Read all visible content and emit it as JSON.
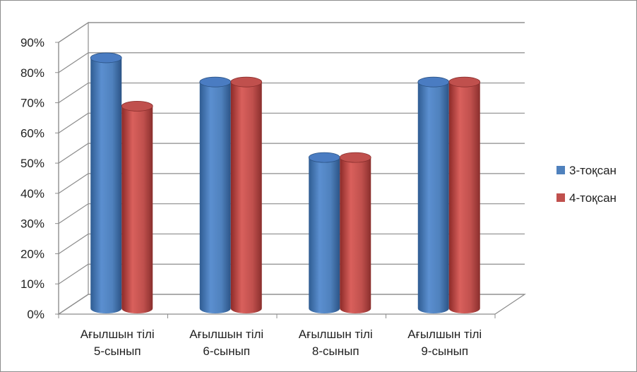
{
  "chart_data": {
    "type": "bar",
    "style": "3d-cylinder",
    "categories": [
      [
        "Ағылшын  тілі",
        "5-сынып"
      ],
      [
        "Ағылшын  тілі",
        "6-сынып"
      ],
      [
        "Ағылшын  тілі",
        "8-сынып"
      ],
      [
        "Ағылшын  тілі",
        "9-сынып"
      ]
    ],
    "series": [
      {
        "name": "3-тоқсан",
        "values": [
          0.83,
          0.75,
          0.5,
          0.75
        ],
        "color": "#4f81bd"
      },
      {
        "name": "4-тоқсан",
        "values": [
          0.67,
          0.75,
          0.5,
          0.75
        ],
        "color": "#c0504d"
      }
    ],
    "ylim": [
      0,
      0.9
    ],
    "yticks": [
      "0%",
      "10%",
      "20%",
      "30%",
      "40%",
      "50%",
      "60%",
      "70%",
      "80%",
      "90%"
    ],
    "grid": true,
    "legend": "right"
  }
}
